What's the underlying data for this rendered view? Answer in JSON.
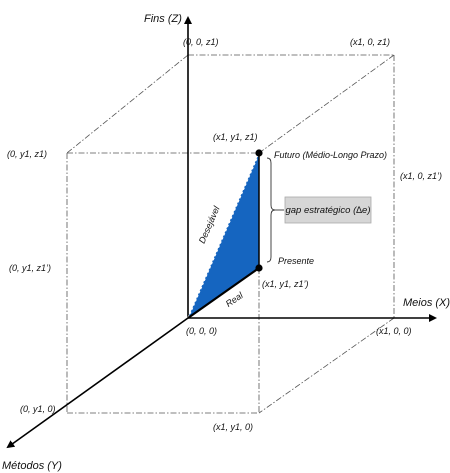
{
  "axes": {
    "z_title": "Fins (Z)",
    "x_title": "Meios (X)",
    "y_title": "Métodos (Y)"
  },
  "points": {
    "origin": "(0, 0, 0)",
    "z1": "(0, 0, z1)",
    "x1_0_z1": "(x1, 0, z1)",
    "y1_z1": "(0, y1, z1)",
    "x1_y1_z1": "(x1, y1, z1)",
    "x1_0_z1p": "(x1, 0, z1’)",
    "y1_z1p": "(0, y1, z1’)",
    "x1_y1_z1p": "(x1, y1, z1’)",
    "x1_0_0": "(x1, 0, 0)",
    "x1_0_0_near": "(x1, 0, 0)",
    "y1_0": "(0, y1, 0)",
    "x1_y1_0": "(x1, y1, 0)"
  },
  "labels": {
    "futuro": "Futuro (Médio-Longo Prazo)",
    "presente": "Presente",
    "desejavel": "Desejável",
    "real": "Real",
    "gap": "gap estratégico (∆e)"
  },
  "colors": {
    "triangle_fill": "#1565c0",
    "gap_box_fill": "#d6d6d6"
  }
}
